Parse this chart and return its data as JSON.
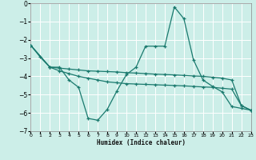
{
  "xlabel": "Humidex (Indice chaleur)",
  "bg_color": "#cceee8",
  "grid_color": "#ffffff",
  "line_color": "#1a7a6e",
  "xlim": [
    0,
    23
  ],
  "ylim": [
    -7,
    0
  ],
  "xticks": [
    0,
    1,
    2,
    3,
    4,
    5,
    6,
    7,
    8,
    9,
    10,
    11,
    12,
    13,
    14,
    15,
    16,
    17,
    18,
    19,
    20,
    21,
    22,
    23
  ],
  "yticks": [
    0,
    -1,
    -2,
    -3,
    -4,
    -5,
    -6,
    -7
  ],
  "series1_x": [
    0,
    1,
    2,
    3,
    4,
    5,
    6,
    7,
    8,
    9,
    10,
    11,
    12,
    13,
    14,
    15,
    16,
    17,
    18,
    19,
    20,
    21,
    22,
    23
  ],
  "series1_y": [
    -2.3,
    -2.95,
    -3.5,
    -3.5,
    -4.2,
    -4.6,
    -6.3,
    -6.4,
    -5.8,
    -4.8,
    -3.9,
    -3.5,
    -2.35,
    -2.35,
    -2.35,
    -0.2,
    -0.85,
    -3.1,
    -4.2,
    -4.55,
    -4.85,
    -5.65,
    -5.75,
    -5.85
  ],
  "series2_x": [
    0,
    2,
    3,
    4,
    5,
    6,
    7,
    8,
    9,
    10,
    11,
    12,
    13,
    14,
    15,
    16,
    17,
    18,
    19,
    20,
    21,
    22,
    23
  ],
  "series2_y": [
    -2.3,
    -3.5,
    -3.55,
    -3.6,
    -3.65,
    -3.7,
    -3.72,
    -3.74,
    -3.76,
    -3.8,
    -3.82,
    -3.85,
    -3.88,
    -3.9,
    -3.92,
    -3.95,
    -3.98,
    -4.0,
    -4.05,
    -4.1,
    -4.2,
    -5.6,
    -5.85
  ],
  "series3_x": [
    0,
    2,
    3,
    4,
    5,
    6,
    7,
    8,
    9,
    10,
    11,
    12,
    13,
    14,
    15,
    16,
    17,
    18,
    19,
    20,
    21,
    22,
    23
  ],
  "series3_y": [
    -2.3,
    -3.5,
    -3.7,
    -3.85,
    -4.0,
    -4.1,
    -4.2,
    -4.3,
    -4.35,
    -4.4,
    -4.42,
    -4.44,
    -4.46,
    -4.48,
    -4.5,
    -4.52,
    -4.55,
    -4.58,
    -4.6,
    -4.65,
    -4.7,
    -5.6,
    -5.85
  ]
}
